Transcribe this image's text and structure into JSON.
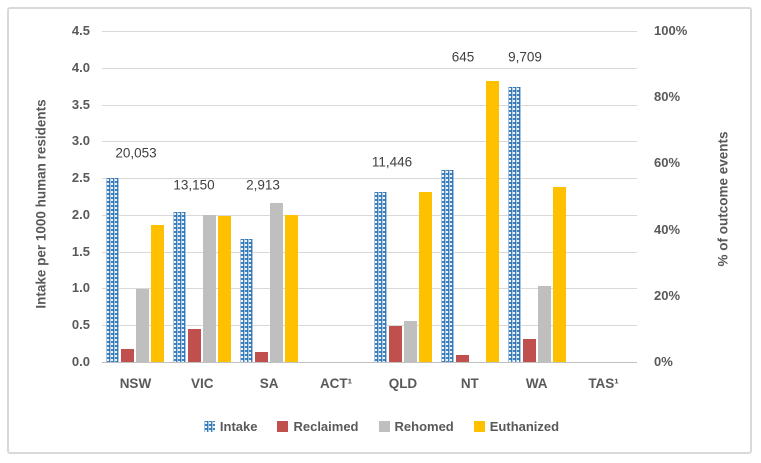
{
  "chart_data": {
    "type": "bar",
    "title": "",
    "categories": [
      "NSW",
      "VIC",
      "SA",
      "ACT¹",
      "QLD",
      "NT",
      "WA",
      "TAS¹"
    ],
    "left_axis": {
      "label": "Intake per 1000 human residents",
      "min": 0,
      "max": 4.5,
      "tick_step": 0.5,
      "ticks": [
        "4.5",
        "4.0",
        "3.5",
        "3.0",
        "2.5",
        "2.0",
        "1.5",
        "1.0",
        "0.5",
        "0.0"
      ]
    },
    "right_axis": {
      "label": "% of outcome events",
      "min": 0,
      "max": 100,
      "tick_step": 20,
      "ticks": [
        "100%",
        "80%",
        "60%",
        "40%",
        "20%",
        "0%"
      ]
    },
    "series": [
      {
        "name": "Intake",
        "axis": "left",
        "color": "#2E74B5",
        "fill": "pattern-blue",
        "values": [
          2.5,
          2.04,
          1.67,
          null,
          2.31,
          2.61,
          3.74,
          null
        ]
      },
      {
        "name": "Reclaimed",
        "axis": "right",
        "color": "#C0504D",
        "fill": "solid",
        "values": [
          4,
          10,
          3,
          null,
          11,
          2,
          7,
          null
        ]
      },
      {
        "name": "Rehomed",
        "axis": "right",
        "color": "#BFBFBF",
        "fill": "solid",
        "values": [
          22,
          44.5,
          48,
          null,
          12.5,
          0,
          23,
          null
        ]
      },
      {
        "name": "Euthanized",
        "axis": "right",
        "color": "#FFC000",
        "fill": "solid",
        "values": [
          41.5,
          44,
          44.5,
          null,
          51.5,
          85,
          53,
          null
        ]
      }
    ],
    "data_labels": [
      {
        "category": "NSW",
        "text": "20,053"
      },
      {
        "category": "VIC",
        "text": "13,150"
      },
      {
        "category": "SA",
        "text": "2,913"
      },
      {
        "category": "QLD",
        "text": "11,446"
      },
      {
        "category": "NT",
        "text": "645"
      },
      {
        "category": "WA",
        "text": "9,709"
      }
    ],
    "legend_position": "bottom",
    "grid": true,
    "grid_color": "#D9D9D9",
    "axis_text_color": "#595959"
  }
}
